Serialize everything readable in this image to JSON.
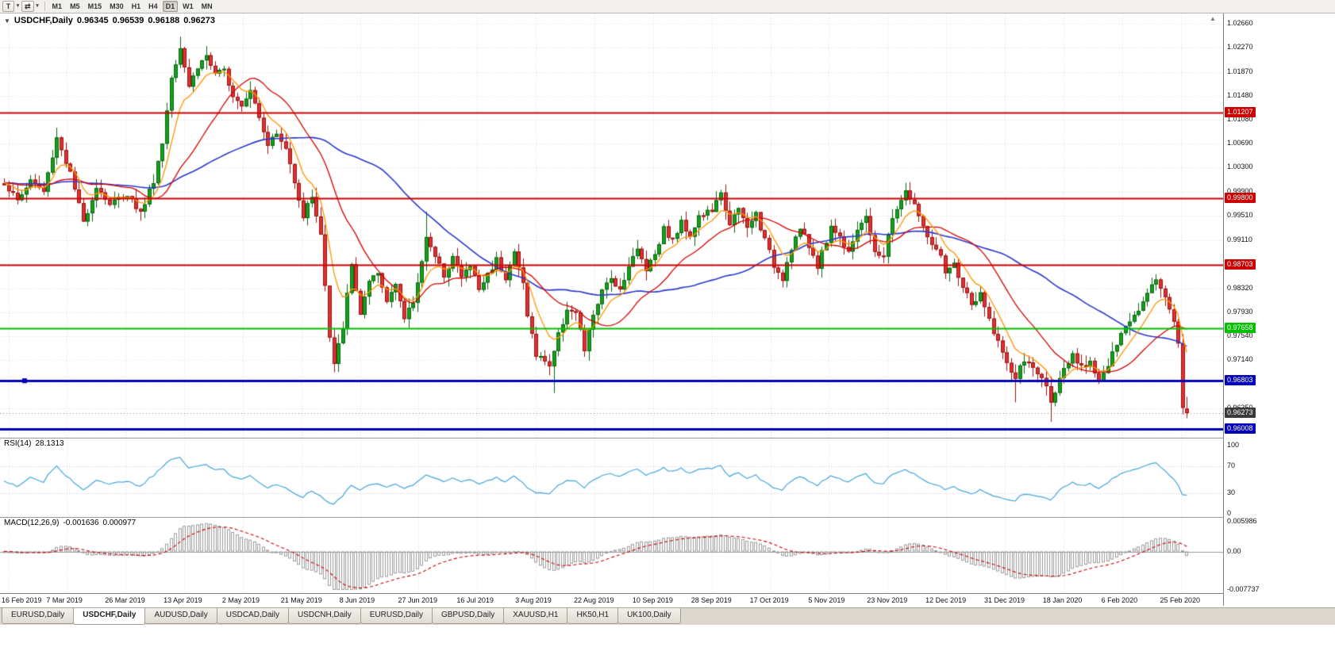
{
  "icons": {
    "title_marker": "▼",
    "dropdown": "▾",
    "cycle": "⇄",
    "scroll_up": "▲"
  },
  "toolbar": {
    "templates_label": "T",
    "timeframes": [
      "M1",
      "M5",
      "M15",
      "M30",
      "H1",
      "H4",
      "D1",
      "W1",
      "MN"
    ],
    "active_timeframe": "D1"
  },
  "chart_data": {
    "type": "candlestick",
    "title": {
      "symbol": "USDCHF,Daily",
      "open": "0.96345",
      "high": "0.96539",
      "low": "0.96188",
      "close": "0.96273"
    },
    "bars": 270,
    "price_axis": {
      "min": 0.9596,
      "max": 1.0266,
      "labels": [
        "1.02660",
        "1.02270",
        "1.01870",
        "1.01480",
        "1.01080",
        "1.00690",
        "1.00300",
        "0.99900",
        "0.99510",
        "0.99110",
        "0.98720",
        "0.98320",
        "0.97930",
        "0.97540",
        "0.97140",
        "0.96750",
        "0.96350",
        "0.95960"
      ]
    },
    "x_axis": {
      "labels": [
        "16 Feb 2019",
        "7 Mar 2019",
        "26 Mar 2019",
        "13 Apr 2019",
        "2 May 2019",
        "21 May 2019",
        "8 Jun 2019",
        "27 Jun 2019",
        "16 Jul 2019",
        "3 Aug 2019",
        "22 Aug 2019",
        "10 Sep 2019",
        "28 Sep 2019",
        "17 Oct 2019",
        "5 Nov 2019",
        "23 Nov 2019",
        "12 Dec 2019",
        "31 Dec 2019",
        "18 Jan 2020",
        "6 Feb 2020",
        "25 Feb 2020"
      ]
    },
    "close_anchors": [
      [
        0,
        1.0005
      ],
      [
        3,
        0.9975
      ],
      [
        6,
        1.001
      ],
      [
        9,
        0.999
      ],
      [
        12,
        1.008
      ],
      [
        15,
        1.002
      ],
      [
        18,
        0.994
      ],
      [
        21,
        1.0
      ],
      [
        24,
        0.997
      ],
      [
        28,
        0.9988
      ],
      [
        31,
        0.9955
      ],
      [
        34,
        1.001
      ],
      [
        36,
        1.007
      ],
      [
        38,
        1.018
      ],
      [
        40,
        1.023
      ],
      [
        42,
        1.0165
      ],
      [
        44,
        1.0195
      ],
      [
        46,
        1.0215
      ],
      [
        48,
        1.018
      ],
      [
        50,
        1.019
      ],
      [
        52,
        1.015
      ],
      [
        54,
        1.0135
      ],
      [
        56,
        1.016
      ],
      [
        58,
        1.0115
      ],
      [
        60,
        1.007
      ],
      [
        62,
        1.0085
      ],
      [
        64,
        1.006
      ],
      [
        66,
        1.001
      ],
      [
        68,
        0.995
      ],
      [
        70,
        0.9985
      ],
      [
        72,
        0.992
      ],
      [
        74,
        0.975
      ],
      [
        75,
        0.9705
      ],
      [
        77,
        0.977
      ],
      [
        79,
        0.987
      ],
      [
        81,
        0.979
      ],
      [
        83,
        0.984
      ],
      [
        85,
        0.9855
      ],
      [
        87,
        0.981
      ],
      [
        89,
        0.9845
      ],
      [
        91,
        0.978
      ],
      [
        93,
        0.981
      ],
      [
        94,
        0.984
      ],
      [
        96,
        0.992
      ],
      [
        98,
        0.988
      ],
      [
        100,
        0.9855
      ],
      [
        102,
        0.9885
      ],
      [
        104,
        0.985
      ],
      [
        106,
        0.987
      ],
      [
        108,
        0.983
      ],
      [
        110,
        0.9855
      ],
      [
        112,
        0.988
      ],
      [
        114,
        0.985
      ],
      [
        116,
        0.989
      ],
      [
        118,
        0.984
      ],
      [
        119,
        0.979
      ],
      [
        121,
        0.972
      ],
      [
        123,
        0.9715
      ],
      [
        124,
        0.9705
      ],
      [
        126,
        0.9755
      ],
      [
        128,
        0.98
      ],
      [
        130,
        0.979
      ],
      [
        132,
        0.973
      ],
      [
        134,
        0.979
      ],
      [
        136,
        0.9825
      ],
      [
        138,
        0.985
      ],
      [
        140,
        0.983
      ],
      [
        142,
        0.987
      ],
      [
        144,
        0.9895
      ],
      [
        146,
        0.9865
      ],
      [
        148,
        0.989
      ],
      [
        150,
        0.993
      ],
      [
        152,
        0.991
      ],
      [
        154,
        0.994
      ],
      [
        156,
        0.992
      ],
      [
        158,
        0.995
      ],
      [
        161,
        0.996
      ],
      [
        163,
        0.9985
      ],
      [
        165,
        0.994
      ],
      [
        167,
        0.996
      ],
      [
        169,
        0.993
      ],
      [
        171,
        0.9955
      ],
      [
        173,
        0.991
      ],
      [
        175,
        0.987
      ],
      [
        177,
        0.985
      ],
      [
        179,
        0.99
      ],
      [
        181,
        0.993
      ],
      [
        183,
        0.99
      ],
      [
        185,
        0.987
      ],
      [
        187,
        0.991
      ],
      [
        188,
        0.9935
      ],
      [
        190,
        0.9915
      ],
      [
        192,
        0.9895
      ],
      [
        194,
        0.993
      ],
      [
        196,
        0.9945
      ],
      [
        198,
        0.9895
      ],
      [
        200,
        0.988
      ],
      [
        201,
        0.992
      ],
      [
        203,
        0.9965
      ],
      [
        205,
        0.999
      ],
      [
        207,
        0.997
      ],
      [
        209,
        0.993
      ],
      [
        211,
        0.9905
      ],
      [
        213,
        0.988
      ],
      [
        214,
        0.9855
      ],
      [
        216,
        0.987
      ],
      [
        218,
        0.9835
      ],
      [
        220,
        0.9805
      ],
      [
        222,
        0.982
      ],
      [
        224,
        0.978
      ],
      [
        226,
        0.9745
      ],
      [
        228,
        0.9705
      ],
      [
        230,
        0.9685
      ],
      [
        232,
        0.9715
      ],
      [
        234,
        0.97
      ],
      [
        236,
        0.9685
      ],
      [
        238,
        0.965
      ],
      [
        240,
        0.968
      ],
      [
        241,
        0.9695
      ],
      [
        243,
        0.972
      ],
      [
        245,
        0.97
      ],
      [
        247,
        0.9715
      ],
      [
        249,
        0.968
      ],
      [
        251,
        0.9705
      ],
      [
        253,
        0.974
      ],
      [
        254,
        0.9755
      ],
      [
        256,
        0.978
      ],
      [
        258,
        0.98
      ],
      [
        260,
        0.983
      ],
      [
        262,
        0.9845
      ],
      [
        264,
        0.982
      ],
      [
        266,
        0.978
      ],
      [
        267,
        0.974
      ],
      [
        268,
        0.964
      ],
      [
        269,
        0.96273
      ]
    ],
    "wick_extremes": {
      "lows": [
        [
          75,
          0.9695
        ],
        [
          125,
          0.966
        ],
        [
          230,
          0.9645
        ],
        [
          238,
          0.9613
        ]
      ],
      "highs": [
        [
          40,
          1.0245
        ],
        [
          96,
          0.9958
        ],
        [
          163,
          0.9992
        ],
        [
          205,
          1.0005
        ]
      ]
    },
    "last_candle": {
      "open": 0.96345,
      "high": 0.96539,
      "low": 0.96188,
      "close": 0.96273
    },
    "moving_averages": [
      {
        "name": "fast",
        "period": 8,
        "type": "ema",
        "color": "#ff9500"
      },
      {
        "name": "mid",
        "period": 20,
        "type": "sma",
        "color": "#d40000"
      },
      {
        "name": "slow",
        "period": 50,
        "type": "sma",
        "color": "#2b38cc"
      }
    ],
    "hlines": [
      {
        "price": 1.01207,
        "label": "1.01207",
        "color": "#cc0000",
        "width": 2
      },
      {
        "price": 0.998,
        "label": "0.99800",
        "color": "#cc0000",
        "width": 2
      },
      {
        "price": 0.98703,
        "label": "0.98703",
        "color": "#cc0000",
        "width": 2
      },
      {
        "price": 0.97658,
        "label": "0.97658",
        "color": "#00c000",
        "width": 2
      },
      {
        "price": 0.96803,
        "label": "0.96803",
        "color": "#0000bb",
        "width": 3
      },
      {
        "price": 0.96008,
        "label": "0.96008",
        "color": "#0000bb",
        "width": 3
      }
    ],
    "current_price": {
      "value": 0.96273,
      "label": "0.96273",
      "badge_bg": "#3a3a3a"
    },
    "rsi": {
      "name": "RSI(14)",
      "value": "28.1313",
      "period": 14,
      "levels": [
        30,
        70
      ],
      "range": [
        0,
        100
      ],
      "axis_labels": [
        "100",
        "70",
        "30",
        "0"
      ],
      "color": "#42a5dd"
    },
    "macd": {
      "name": "MACD(12,26,9)",
      "value_main": "-0.001636",
      "value_signal": "0.000977",
      "fast": 12,
      "slow": 26,
      "signal": 9,
      "range": [
        -0.007737,
        0.005986
      ],
      "axis_labels": [
        "0.005986",
        "0.00",
        "-0.007737"
      ],
      "hist_color": "#9a9a9a",
      "signal_color": "#cc0000"
    },
    "candle_colors": {
      "bull_fill": "#16a01e",
      "bull_border": "#0a6410",
      "bear_fill": "#de3232",
      "bear_border": "#981212"
    },
    "grid_color": "#dcdcdc"
  },
  "tabs": [
    {
      "label": "EURUSD,Daily",
      "active": false
    },
    {
      "label": "USDCHF,Daily",
      "active": true
    },
    {
      "label": "AUDUSD,Daily",
      "active": false
    },
    {
      "label": "USDCAD,Daily",
      "active": false
    },
    {
      "label": "USDCNH,Daily",
      "active": false
    },
    {
      "label": "EURUSD,Daily",
      "active": false
    },
    {
      "label": "GBPUSD,Daily",
      "active": false
    },
    {
      "label": "XAUUSD,H1",
      "active": false
    },
    {
      "label": "HK50,H1",
      "active": false
    },
    {
      "label": "UK100,Daily",
      "active": false
    }
  ]
}
